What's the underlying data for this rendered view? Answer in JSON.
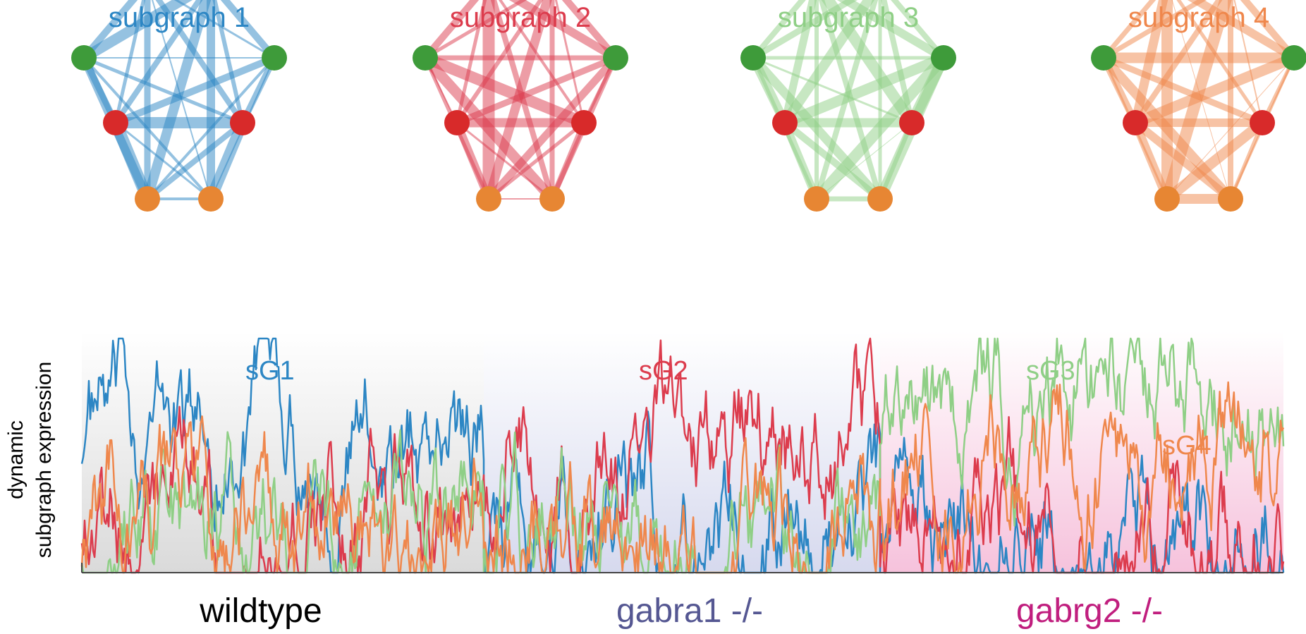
{
  "subgraphs": [
    {
      "title": "subgraph 1",
      "color": "#2c86c4"
    },
    {
      "title": "subgraph 2",
      "color": "#dc3c4d"
    },
    {
      "title": "subgraph 3",
      "color": "#8fcf86"
    },
    {
      "title": "subgraph 4",
      "color": "#ef874c"
    }
  ],
  "node_colors": [
    "#4b6cbf",
    "#4b6cbf",
    "#3e9b3a",
    "#3e9b3a",
    "#d82a2a",
    "#d82a2a",
    "#e78633",
    "#e78633"
  ],
  "y_axis_label_line1": "dynamic",
  "y_axis_label_line2": "subgraph expression",
  "series_labels": [
    {
      "text": "sG1",
      "color": "#2c86c4"
    },
    {
      "text": "sG2",
      "color": "#dc3c4d"
    },
    {
      "text": "sG3",
      "color": "#8fcf86"
    },
    {
      "text": "sG4",
      "color": "#ef874c"
    }
  ],
  "conditions": [
    {
      "label": "wildtype",
      "color": "#000000"
    },
    {
      "label": "gabra1 -/-",
      "color": "#555792"
    },
    {
      "label": "gabrg2 -/-",
      "color": "#c01e7e"
    }
  ]
}
